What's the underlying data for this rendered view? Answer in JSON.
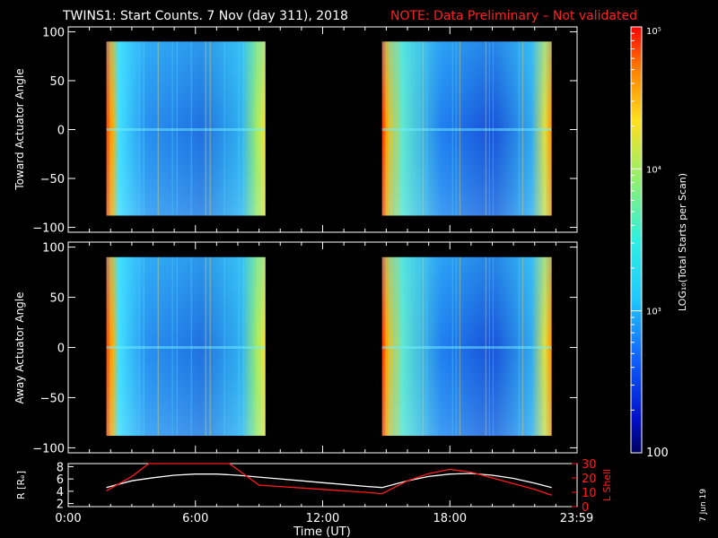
{
  "title": {
    "main": "TWINS1: Start Counts.  7 Nov (day 311), 2018",
    "note": "NOTE: Data Preliminary – Not validated",
    "note_color": "#ff2020"
  },
  "date_stamp": "7 Jun 19",
  "colorbar": {
    "label": "LOG₁₀(Total Starts per Scan)",
    "ticks": [
      "10⁵",
      "10⁴",
      "10³",
      "100"
    ],
    "range": [
      100,
      100000
    ]
  },
  "chart_data": [
    {
      "type": "heatmap",
      "name": "toward-panel",
      "ylabel": "Toward Actuator Angle",
      "ylim": [
        -105,
        105
      ],
      "y_ticks": [
        "100",
        "50",
        "0",
        "−50",
        "−100"
      ],
      "y_tick_values": [
        100,
        50,
        0,
        -50,
        -100
      ],
      "xlim_hours": [
        0,
        24
      ],
      "data_intervals_hours": [
        [
          1.8,
          9.3
        ],
        [
          14.8,
          22.8
        ]
      ],
      "angle_range": [
        -88,
        90
      ]
    },
    {
      "type": "heatmap",
      "name": "away-panel",
      "ylabel": "Away Actuator Angle",
      "ylim": [
        -105,
        105
      ],
      "y_ticks": [
        "100",
        "50",
        "0",
        "−50",
        "−100"
      ],
      "y_tick_values": [
        100,
        50,
        0,
        -50,
        -100
      ],
      "xlim_hours": [
        0,
        24
      ],
      "data_intervals_hours": [
        [
          1.8,
          9.3
        ],
        [
          14.8,
          22.8
        ]
      ],
      "angle_range": [
        -88,
        90
      ]
    },
    {
      "type": "line",
      "name": "orbit-panel",
      "xlabel": "Time (UT)",
      "x_ticks": [
        "0:00",
        "6:00",
        "12:00",
        "18:00",
        "23:59"
      ],
      "x_tick_hours": [
        0,
        6,
        12,
        18,
        23.98
      ],
      "ylabel_left": "R [Rₑ]",
      "ylabel_right": "L Shell",
      "ylim_left": [
        1.5,
        8.5
      ],
      "ylim_right": [
        0,
        30
      ],
      "y_ticks_left": [
        "8",
        "6",
        "4",
        "2"
      ],
      "y_tick_values_left": [
        8,
        6,
        4,
        2
      ],
      "y_ticks_right": [
        "30",
        "20",
        "10",
        "0"
      ],
      "y_tick_values_right": [
        30,
        20,
        10,
        0
      ],
      "series": [
        {
          "name": "R",
          "axis": "left",
          "color": "#ffffff",
          "x": [
            1.8,
            3,
            4,
            5,
            6,
            7,
            8,
            9,
            10,
            11,
            12,
            13,
            14,
            14.8,
            16,
            17,
            18,
            19,
            20,
            21,
            22,
            22.8
          ],
          "y": [
            4.6,
            5.7,
            6.2,
            6.6,
            6.8,
            6.8,
            6.6,
            6.3,
            6.0,
            5.7,
            5.4,
            5.1,
            4.8,
            4.6,
            5.7,
            6.4,
            6.8,
            6.9,
            6.6,
            6.1,
            5.3,
            4.6
          ]
        },
        {
          "name": "L Shell",
          "axis": "right",
          "color": "#ff1a1a",
          "x": [
            1.8,
            3,
            3.8,
            7.6,
            9,
            10,
            11,
            12,
            13,
            14,
            14.8,
            16,
            17,
            18,
            19,
            20,
            21,
            22,
            22.8
          ],
          "y": [
            11,
            21,
            30,
            30,
            15,
            14,
            13,
            12,
            11,
            10,
            9,
            18,
            23,
            26,
            24,
            20,
            16,
            12,
            8
          ]
        }
      ]
    }
  ]
}
